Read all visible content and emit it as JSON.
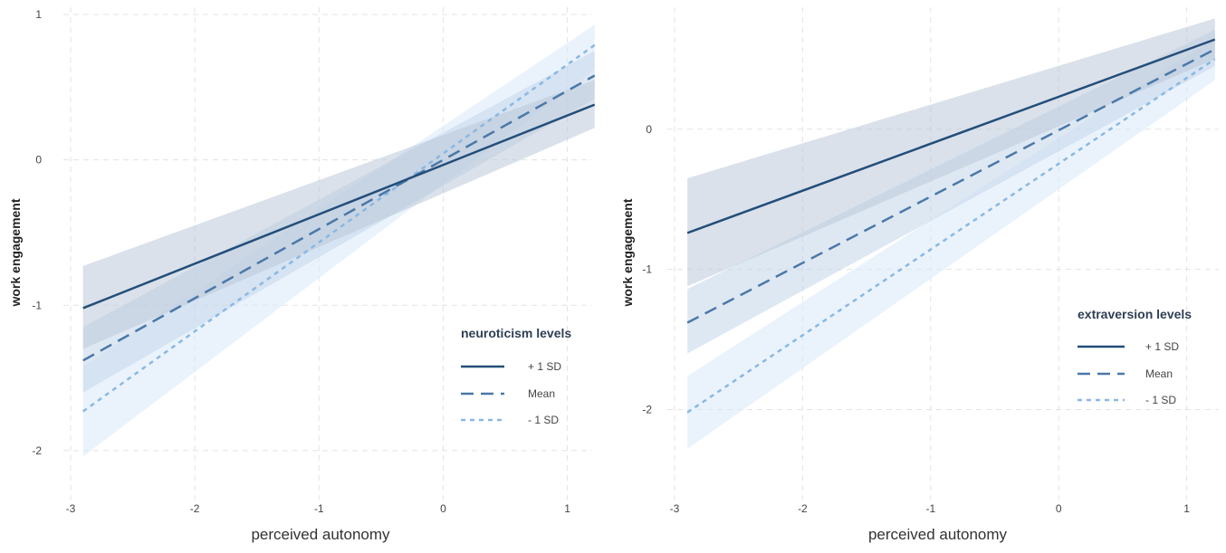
{
  "chart_data": [
    {
      "type": "line",
      "xlabel": "perceived autonomy",
      "ylabel": "work engagement",
      "xlim": [
        -3,
        1.2
      ],
      "ylim": [
        -2.2,
        1.05
      ],
      "x_ticks": [
        "-3",
        "-2",
        "-1",
        "0",
        "1"
      ],
      "y_ticks": [
        "1",
        "0",
        "-1",
        "-2"
      ],
      "grid": true,
      "legend": {
        "title": "neuroticism levels",
        "position": "right",
        "entries": [
          "+ 1 SD",
          "Mean",
          "- 1 SD"
        ]
      },
      "series": [
        {
          "name": "+ 1 SD",
          "style": "solid",
          "color": "#234e7a",
          "band_color": "#bcc8d8",
          "x": [
            -2.9,
            1.22
          ],
          "y": [
            -1.02,
            0.38
          ],
          "lower": [
            -1.3,
            0.22
          ],
          "upper": [
            -0.73,
            0.55
          ]
        },
        {
          "name": "Mean",
          "style": "dashed",
          "color": "#4a78a8",
          "band_color": "#c3d5ea",
          "x": [
            -2.9,
            1.22
          ],
          "y": [
            -1.38,
            0.58
          ],
          "lower": [
            -1.6,
            0.42
          ],
          "upper": [
            -1.15,
            0.75
          ]
        },
        {
          "name": "- 1 SD",
          "style": "dotted",
          "color": "#8ab8e2",
          "band_color": "#d9eafa",
          "x": [
            -2.9,
            1.22
          ],
          "y": [
            -1.73,
            0.79
          ],
          "lower": [
            -2.04,
            0.62
          ],
          "upper": [
            -1.42,
            0.93
          ]
        }
      ]
    },
    {
      "type": "line",
      "xlabel": "perceived autonomy",
      "ylabel": "work engagement",
      "xlim": [
        -3,
        1.25
      ],
      "ylim": [
        -2.5,
        0.87
      ],
      "x_ticks": [
        "-3",
        "-2",
        "-1",
        "0",
        "1"
      ],
      "y_ticks": [
        "0",
        "-1",
        "-2"
      ],
      "grid": true,
      "legend": {
        "title": "extraversion levels",
        "position": "right",
        "entries": [
          "+ 1 SD",
          "Mean",
          "- 1 SD"
        ]
      },
      "series": [
        {
          "name": "+ 1 SD",
          "style": "solid",
          "color": "#234e7a",
          "band_color": "#bcc8d8",
          "x": [
            -2.9,
            1.22
          ],
          "y": [
            -0.74,
            0.64
          ],
          "lower": [
            -1.12,
            0.5
          ],
          "upper": [
            -0.35,
            0.79
          ]
        },
        {
          "name": "Mean",
          "style": "dashed",
          "color": "#4a78a8",
          "band_color": "#c3d5ea",
          "x": [
            -2.9,
            1.22
          ],
          "y": [
            -1.38,
            0.57
          ],
          "lower": [
            -1.6,
            0.45
          ],
          "upper": [
            -1.14,
            0.71
          ]
        },
        {
          "name": "- 1 SD",
          "style": "dotted",
          "color": "#8ab8e2",
          "band_color": "#d9eafa",
          "x": [
            -2.9,
            1.22
          ],
          "y": [
            -2.02,
            0.5
          ],
          "lower": [
            -2.28,
            0.35
          ],
          "upper": [
            -1.76,
            0.65
          ]
        }
      ]
    }
  ]
}
